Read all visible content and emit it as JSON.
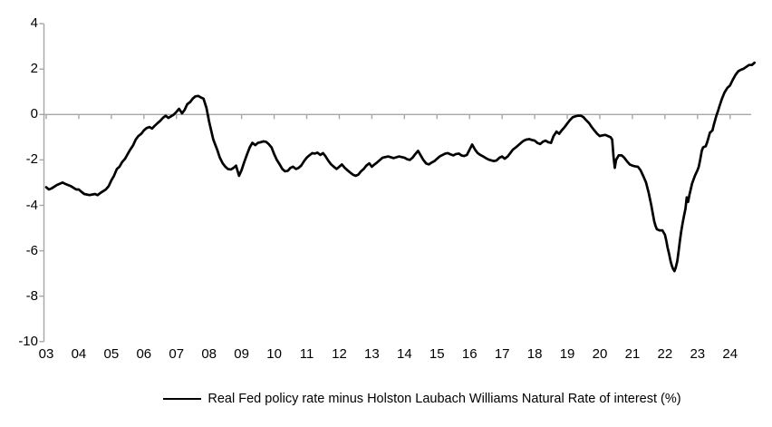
{
  "colors": {
    "background": "#FFFFFF",
    "axis_line": "#A6A6A6",
    "series_line": "#000000",
    "text": "#000000"
  },
  "chart_data": {
    "type": "line",
    "title": "",
    "legend_position": "bottom",
    "grid": "zero-gridline-only",
    "x_axis": {
      "tick_labels": [
        "03",
        "04",
        "05",
        "06",
        "07",
        "08",
        "09",
        "10",
        "11",
        "12",
        "13",
        "14",
        "15",
        "16",
        "17",
        "18",
        "19",
        "20",
        "21",
        "22",
        "23",
        "24"
      ],
      "tick_years": [
        2003,
        2004,
        2005,
        2006,
        2007,
        2008,
        2009,
        2010,
        2011,
        2012,
        2013,
        2014,
        2015,
        2016,
        2017,
        2018,
        2019,
        2020,
        2021,
        2022,
        2023,
        2024
      ],
      "range": [
        2003,
        2024.9
      ]
    },
    "y_axis": {
      "tick_labels": [
        "4",
        "2",
        "0",
        "-2",
        "-4",
        "-6",
        "-8",
        "-10"
      ],
      "tick_values": [
        4,
        2,
        0,
        -2,
        -4,
        -6,
        -8,
        -10
      ],
      "range": [
        -10,
        4
      ]
    },
    "series": [
      {
        "name": "Real Fed policy rate minus Holston Laubach Williams Natural Rate of interest (%)",
        "color": "#000000",
        "points": [
          [
            2003.0,
            -3.2
          ],
          [
            2003.08,
            -3.3
          ],
          [
            2003.17,
            -3.25
          ],
          [
            2003.33,
            -3.1
          ],
          [
            2003.5,
            -3.0
          ],
          [
            2003.58,
            -3.05
          ],
          [
            2003.75,
            -3.15
          ],
          [
            2003.92,
            -3.3
          ],
          [
            2004.0,
            -3.3
          ],
          [
            2004.08,
            -3.4
          ],
          [
            2004.17,
            -3.5
          ],
          [
            2004.33,
            -3.55
          ],
          [
            2004.5,
            -3.5
          ],
          [
            2004.58,
            -3.55
          ],
          [
            2004.67,
            -3.45
          ],
          [
            2004.83,
            -3.3
          ],
          [
            2004.92,
            -3.15
          ],
          [
            2005.0,
            -2.9
          ],
          [
            2005.08,
            -2.7
          ],
          [
            2005.17,
            -2.4
          ],
          [
            2005.25,
            -2.3
          ],
          [
            2005.33,
            -2.1
          ],
          [
            2005.42,
            -1.95
          ],
          [
            2005.5,
            -1.75
          ],
          [
            2005.58,
            -1.55
          ],
          [
            2005.67,
            -1.35
          ],
          [
            2005.75,
            -1.1
          ],
          [
            2005.83,
            -0.95
          ],
          [
            2005.92,
            -0.85
          ],
          [
            2006.0,
            -0.7
          ],
          [
            2006.08,
            -0.6
          ],
          [
            2006.17,
            -0.55
          ],
          [
            2006.25,
            -0.62
          ],
          [
            2006.33,
            -0.5
          ],
          [
            2006.42,
            -0.38
          ],
          [
            2006.5,
            -0.28
          ],
          [
            2006.58,
            -0.15
          ],
          [
            2006.67,
            -0.05
          ],
          [
            2006.75,
            -0.15
          ],
          [
            2006.83,
            -0.08
          ],
          [
            2006.92,
            0.0
          ],
          [
            2007.0,
            0.12
          ],
          [
            2007.08,
            0.25
          ],
          [
            2007.17,
            0.05
          ],
          [
            2007.25,
            0.2
          ],
          [
            2007.33,
            0.45
          ],
          [
            2007.42,
            0.55
          ],
          [
            2007.5,
            0.7
          ],
          [
            2007.58,
            0.8
          ],
          [
            2007.67,
            0.82
          ],
          [
            2007.75,
            0.75
          ],
          [
            2007.83,
            0.7
          ],
          [
            2007.92,
            0.3
          ],
          [
            2008.0,
            -0.3
          ],
          [
            2008.08,
            -0.8
          ],
          [
            2008.13,
            -1.1
          ],
          [
            2008.17,
            -1.25
          ],
          [
            2008.25,
            -1.55
          ],
          [
            2008.33,
            -1.9
          ],
          [
            2008.42,
            -2.15
          ],
          [
            2008.5,
            -2.3
          ],
          [
            2008.58,
            -2.4
          ],
          [
            2008.67,
            -2.42
          ],
          [
            2008.75,
            -2.35
          ],
          [
            2008.83,
            -2.25
          ],
          [
            2008.88,
            -2.5
          ],
          [
            2008.92,
            -2.7
          ],
          [
            2009.0,
            -2.45
          ],
          [
            2009.08,
            -2.1
          ],
          [
            2009.17,
            -1.75
          ],
          [
            2009.25,
            -1.45
          ],
          [
            2009.33,
            -1.25
          ],
          [
            2009.42,
            -1.35
          ],
          [
            2009.5,
            -1.25
          ],
          [
            2009.58,
            -1.22
          ],
          [
            2009.67,
            -1.18
          ],
          [
            2009.75,
            -1.2
          ],
          [
            2009.83,
            -1.3
          ],
          [
            2009.92,
            -1.45
          ],
          [
            2010.0,
            -1.75
          ],
          [
            2010.08,
            -2.0
          ],
          [
            2010.17,
            -2.2
          ],
          [
            2010.25,
            -2.4
          ],
          [
            2010.33,
            -2.5
          ],
          [
            2010.42,
            -2.48
          ],
          [
            2010.5,
            -2.35
          ],
          [
            2010.58,
            -2.3
          ],
          [
            2010.67,
            -2.4
          ],
          [
            2010.75,
            -2.35
          ],
          [
            2010.83,
            -2.25
          ],
          [
            2010.92,
            -2.05
          ],
          [
            2011.0,
            -1.9
          ],
          [
            2011.08,
            -1.8
          ],
          [
            2011.17,
            -1.7
          ],
          [
            2011.25,
            -1.72
          ],
          [
            2011.33,
            -1.68
          ],
          [
            2011.42,
            -1.78
          ],
          [
            2011.5,
            -1.7
          ],
          [
            2011.58,
            -1.85
          ],
          [
            2011.67,
            -2.05
          ],
          [
            2011.75,
            -2.2
          ],
          [
            2011.83,
            -2.3
          ],
          [
            2011.92,
            -2.4
          ],
          [
            2012.0,
            -2.3
          ],
          [
            2012.08,
            -2.2
          ],
          [
            2012.17,
            -2.35
          ],
          [
            2012.25,
            -2.45
          ],
          [
            2012.33,
            -2.55
          ],
          [
            2012.42,
            -2.65
          ],
          [
            2012.5,
            -2.7
          ],
          [
            2012.58,
            -2.65
          ],
          [
            2012.67,
            -2.5
          ],
          [
            2012.75,
            -2.4
          ],
          [
            2012.83,
            -2.25
          ],
          [
            2012.92,
            -2.15
          ],
          [
            2013.0,
            -2.3
          ],
          [
            2013.08,
            -2.2
          ],
          [
            2013.17,
            -2.1
          ],
          [
            2013.25,
            -2.0
          ],
          [
            2013.33,
            -1.9
          ],
          [
            2013.5,
            -1.85
          ],
          [
            2013.67,
            -1.92
          ],
          [
            2013.83,
            -1.85
          ],
          [
            2014.0,
            -1.9
          ],
          [
            2014.08,
            -1.97
          ],
          [
            2014.17,
            -2.0
          ],
          [
            2014.25,
            -1.9
          ],
          [
            2014.33,
            -1.75
          ],
          [
            2014.42,
            -1.6
          ],
          [
            2014.5,
            -1.8
          ],
          [
            2014.58,
            -2.0
          ],
          [
            2014.67,
            -2.16
          ],
          [
            2014.75,
            -2.2
          ],
          [
            2014.83,
            -2.12
          ],
          [
            2014.92,
            -2.05
          ],
          [
            2015.0,
            -1.95
          ],
          [
            2015.08,
            -1.85
          ],
          [
            2015.17,
            -1.78
          ],
          [
            2015.25,
            -1.72
          ],
          [
            2015.33,
            -1.7
          ],
          [
            2015.42,
            -1.76
          ],
          [
            2015.5,
            -1.8
          ],
          [
            2015.58,
            -1.74
          ],
          [
            2015.67,
            -1.72
          ],
          [
            2015.75,
            -1.8
          ],
          [
            2015.83,
            -1.83
          ],
          [
            2015.92,
            -1.78
          ],
          [
            2016.0,
            -1.55
          ],
          [
            2016.08,
            -1.32
          ],
          [
            2016.17,
            -1.55
          ],
          [
            2016.25,
            -1.7
          ],
          [
            2016.33,
            -1.78
          ],
          [
            2016.42,
            -1.85
          ],
          [
            2016.5,
            -1.92
          ],
          [
            2016.58,
            -1.98
          ],
          [
            2016.67,
            -2.02
          ],
          [
            2016.75,
            -2.05
          ],
          [
            2016.83,
            -2.02
          ],
          [
            2016.92,
            -1.9
          ],
          [
            2017.0,
            -1.85
          ],
          [
            2017.08,
            -1.95
          ],
          [
            2017.17,
            -1.85
          ],
          [
            2017.25,
            -1.7
          ],
          [
            2017.33,
            -1.55
          ],
          [
            2017.42,
            -1.45
          ],
          [
            2017.5,
            -1.35
          ],
          [
            2017.58,
            -1.25
          ],
          [
            2017.67,
            -1.15
          ],
          [
            2017.75,
            -1.1
          ],
          [
            2017.83,
            -1.08
          ],
          [
            2017.92,
            -1.12
          ],
          [
            2018.0,
            -1.15
          ],
          [
            2018.08,
            -1.25
          ],
          [
            2018.17,
            -1.3
          ],
          [
            2018.25,
            -1.2
          ],
          [
            2018.33,
            -1.15
          ],
          [
            2018.42,
            -1.22
          ],
          [
            2018.5,
            -1.25
          ],
          [
            2018.58,
            -0.95
          ],
          [
            2018.67,
            -0.75
          ],
          [
            2018.75,
            -0.85
          ],
          [
            2018.83,
            -0.7
          ],
          [
            2018.92,
            -0.55
          ],
          [
            2019.0,
            -0.4
          ],
          [
            2019.08,
            -0.25
          ],
          [
            2019.17,
            -0.12
          ],
          [
            2019.25,
            -0.08
          ],
          [
            2019.33,
            -0.05
          ],
          [
            2019.42,
            -0.05
          ],
          [
            2019.5,
            -0.12
          ],
          [
            2019.58,
            -0.25
          ],
          [
            2019.67,
            -0.38
          ],
          [
            2019.75,
            -0.55
          ],
          [
            2019.83,
            -0.7
          ],
          [
            2019.92,
            -0.85
          ],
          [
            2020.0,
            -0.95
          ],
          [
            2020.08,
            -0.92
          ],
          [
            2020.17,
            -0.9
          ],
          [
            2020.25,
            -0.95
          ],
          [
            2020.33,
            -1.0
          ],
          [
            2020.38,
            -1.1
          ],
          [
            2020.42,
            -1.85
          ],
          [
            2020.46,
            -2.35
          ],
          [
            2020.5,
            -2.0
          ],
          [
            2020.58,
            -1.8
          ],
          [
            2020.67,
            -1.8
          ],
          [
            2020.75,
            -1.9
          ],
          [
            2020.83,
            -2.05
          ],
          [
            2020.92,
            -2.2
          ],
          [
            2021.0,
            -2.25
          ],
          [
            2021.08,
            -2.28
          ],
          [
            2021.17,
            -2.3
          ],
          [
            2021.25,
            -2.45
          ],
          [
            2021.33,
            -2.7
          ],
          [
            2021.42,
            -3.0
          ],
          [
            2021.5,
            -3.45
          ],
          [
            2021.58,
            -4.0
          ],
          [
            2021.63,
            -4.4
          ],
          [
            2021.67,
            -4.7
          ],
          [
            2021.71,
            -4.9
          ],
          [
            2021.75,
            -5.05
          ],
          [
            2021.83,
            -5.1
          ],
          [
            2021.92,
            -5.1
          ],
          [
            2022.0,
            -5.3
          ],
          [
            2022.04,
            -5.55
          ],
          [
            2022.08,
            -5.85
          ],
          [
            2022.13,
            -6.15
          ],
          [
            2022.17,
            -6.45
          ],
          [
            2022.21,
            -6.65
          ],
          [
            2022.25,
            -6.8
          ],
          [
            2022.29,
            -6.9
          ],
          [
            2022.33,
            -6.75
          ],
          [
            2022.38,
            -6.45
          ],
          [
            2022.42,
            -6.0
          ],
          [
            2022.46,
            -5.55
          ],
          [
            2022.5,
            -5.15
          ],
          [
            2022.54,
            -4.8
          ],
          [
            2022.58,
            -4.5
          ],
          [
            2022.63,
            -4.15
          ],
          [
            2022.67,
            -3.65
          ],
          [
            2022.71,
            -3.85
          ],
          [
            2022.75,
            -3.55
          ],
          [
            2022.79,
            -3.3
          ],
          [
            2022.83,
            -3.05
          ],
          [
            2022.92,
            -2.7
          ],
          [
            2023.0,
            -2.45
          ],
          [
            2023.04,
            -2.3
          ],
          [
            2023.08,
            -2.0
          ],
          [
            2023.13,
            -1.6
          ],
          [
            2023.17,
            -1.45
          ],
          [
            2023.21,
            -1.42
          ],
          [
            2023.25,
            -1.4
          ],
          [
            2023.29,
            -1.25
          ],
          [
            2023.33,
            -1.05
          ],
          [
            2023.38,
            -0.8
          ],
          [
            2023.42,
            -0.75
          ],
          [
            2023.46,
            -0.7
          ],
          [
            2023.5,
            -0.45
          ],
          [
            2023.54,
            -0.25
          ],
          [
            2023.58,
            -0.05
          ],
          [
            2023.63,
            0.15
          ],
          [
            2023.67,
            0.35
          ],
          [
            2023.75,
            0.7
          ],
          [
            2023.83,
            0.97
          ],
          [
            2023.92,
            1.18
          ],
          [
            2024.0,
            1.28
          ],
          [
            2024.08,
            1.52
          ],
          [
            2024.17,
            1.75
          ],
          [
            2024.25,
            1.9
          ],
          [
            2024.33,
            1.97
          ],
          [
            2024.42,
            2.02
          ],
          [
            2024.5,
            2.1
          ],
          [
            2024.58,
            2.18
          ],
          [
            2024.67,
            2.18
          ],
          [
            2024.75,
            2.28
          ]
        ]
      }
    ]
  }
}
